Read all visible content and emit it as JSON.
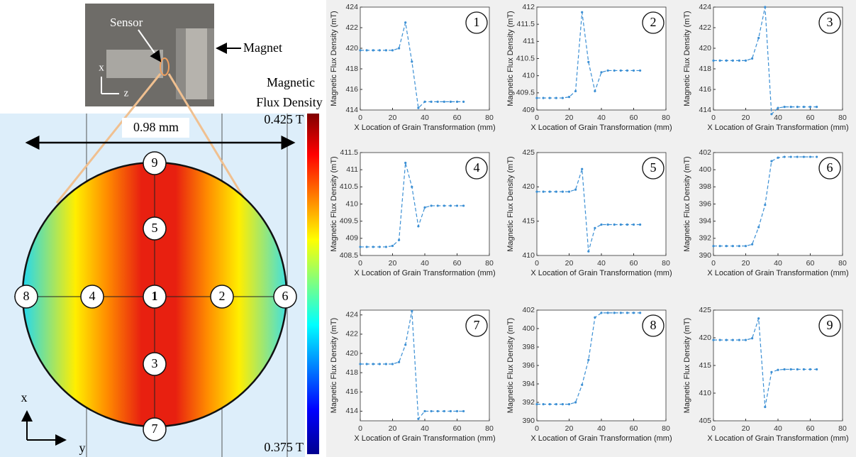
{
  "diagram": {
    "sensor": "Sensor",
    "magnet": "Magnet",
    "photo_x": "x",
    "photo_z": "z",
    "width_label": "0.98 mm",
    "colorbar_title": [
      "Magnetic",
      "Flux Density"
    ],
    "colorbar_max": "0.425 T",
    "colorbar_min": "0.375 T",
    "axis_x": "x",
    "axis_y": "y",
    "points": [
      "9",
      "5",
      "8",
      "4",
      "1",
      "2",
      "6",
      "3",
      "7"
    ]
  },
  "chart_data": [
    {
      "type": "line",
      "annotation": "1",
      "xlabel": "X Location of Grain Transformation (mm)",
      "ylabel": "Magnetic Flux Density (mT)",
      "x": [
        0,
        4,
        8,
        12,
        16,
        20,
        24,
        28,
        32,
        36,
        40,
        44,
        48,
        52,
        56,
        60,
        64
      ],
      "color": "#3b8fd4",
      "values": [
        419.8,
        419.8,
        419.8,
        419.8,
        419.8,
        419.8,
        420.0,
        422.5,
        418.7,
        414.2,
        414.8,
        414.8,
        414.8,
        414.8,
        414.8,
        414.8,
        414.8
      ],
      "xlim": [
        0,
        80
      ],
      "ylim": [
        414,
        424
      ],
      "xticks": [
        0,
        20,
        40,
        60,
        80
      ],
      "yticks": [
        414,
        416,
        418,
        420,
        422,
        424
      ]
    },
    {
      "type": "line",
      "annotation": "2",
      "xlabel": "X Location of Grain Transformation (mm)",
      "ylabel": "Magnetic Flux Density (mT)",
      "x": [
        0,
        4,
        8,
        12,
        16,
        20,
        24,
        28,
        32,
        36,
        40,
        44,
        48,
        52,
        56,
        60,
        64
      ],
      "color": "#3b8fd4",
      "values": [
        409.35,
        409.35,
        409.35,
        409.35,
        409.35,
        409.38,
        409.55,
        411.85,
        410.4,
        409.55,
        410.1,
        410.15,
        410.15,
        410.15,
        410.15,
        410.15,
        410.15
      ],
      "xlim": [
        0,
        80
      ],
      "ylim": [
        409,
        412
      ],
      "xticks": [
        0,
        20,
        40,
        60,
        80
      ],
      "yticks": [
        409,
        409.5,
        410,
        410.5,
        411,
        411.5,
        412
      ]
    },
    {
      "type": "line",
      "annotation": "3",
      "xlabel": "X Location of Grain Transformation (mm)",
      "ylabel": "Magnetic Flux Density (mT)",
      "x": [
        0,
        4,
        8,
        12,
        16,
        20,
        24,
        28,
        32,
        36,
        40,
        44,
        48,
        52,
        56,
        60,
        64
      ],
      "color": "#3b8fd4",
      "values": [
        418.8,
        418.8,
        418.8,
        418.8,
        418.8,
        418.8,
        419.0,
        421.0,
        424.0,
        413.6,
        414.2,
        414.3,
        414.3,
        414.3,
        414.3,
        414.3,
        414.3
      ],
      "xlim": [
        0,
        80
      ],
      "ylim": [
        414,
        424
      ],
      "xticks": [
        0,
        20,
        40,
        60,
        80
      ],
      "yticks": [
        414,
        416,
        418,
        420,
        422,
        424
      ]
    },
    {
      "type": "line",
      "annotation": "4",
      "xlabel": "X Location of Grain Transformation (mm)",
      "ylabel": "Magnetic Flux Density (mT)",
      "x": [
        0,
        4,
        8,
        12,
        16,
        20,
        24,
        28,
        32,
        36,
        40,
        44,
        48,
        52,
        56,
        60,
        64
      ],
      "color": "#3b8fd4",
      "values": [
        408.75,
        408.75,
        408.75,
        408.75,
        408.75,
        408.78,
        408.95,
        411.2,
        410.5,
        409.35,
        409.9,
        409.95,
        409.95,
        409.95,
        409.95,
        409.95,
        409.95
      ],
      "xlim": [
        0,
        80
      ],
      "ylim": [
        408.5,
        411.5
      ],
      "xticks": [
        0,
        20,
        40,
        60,
        80
      ],
      "yticks": [
        408.5,
        409,
        409.5,
        410,
        410.5,
        411,
        411.5
      ]
    },
    {
      "type": "line",
      "annotation": "5",
      "xlabel": "X Location of Grain Transformation (mm)",
      "ylabel": "Magnetic Flux Density (mT)",
      "x": [
        0,
        4,
        8,
        12,
        16,
        20,
        24,
        28,
        32,
        36,
        40,
        44,
        48,
        52,
        56,
        60,
        64
      ],
      "color": "#3b8fd4",
      "values": [
        419.3,
        419.3,
        419.3,
        419.3,
        419.3,
        419.3,
        419.6,
        422.6,
        410.6,
        414.0,
        414.5,
        414.5,
        414.5,
        414.5,
        414.5,
        414.5,
        414.5
      ],
      "xlim": [
        0,
        80
      ],
      "ylim": [
        410,
        425
      ],
      "xticks": [
        0,
        20,
        40,
        60,
        80
      ],
      "yticks": [
        410,
        415,
        420,
        425
      ]
    },
    {
      "type": "line",
      "annotation": "6",
      "xlabel": "X Location of Grain Transformation (mm)",
      "ylabel": "Magnetic Flux Density (mT)",
      "x": [
        0,
        4,
        8,
        12,
        16,
        20,
        24,
        28,
        32,
        36,
        40,
        44,
        48,
        52,
        56,
        60,
        64
      ],
      "color": "#3b8fd4",
      "values": [
        391.1,
        391.1,
        391.1,
        391.1,
        391.1,
        391.1,
        391.3,
        393.3,
        395.9,
        401.0,
        401.4,
        401.5,
        401.5,
        401.5,
        401.5,
        401.5,
        401.5
      ],
      "xlim": [
        0,
        80
      ],
      "ylim": [
        390,
        402
      ],
      "xticks": [
        0,
        20,
        40,
        60,
        80
      ],
      "yticks": [
        390,
        392,
        394,
        396,
        398,
        400,
        402
      ]
    },
    {
      "type": "line",
      "annotation": "7",
      "xlabel": "X Location of Grain Transformation (mm)",
      "ylabel": "Magnetic Flux Density (mT)",
      "x": [
        0,
        4,
        8,
        12,
        16,
        20,
        24,
        28,
        32,
        36,
        40,
        44,
        48,
        52,
        56,
        60,
        64
      ],
      "color": "#3b8fd4",
      "values": [
        418.9,
        418.9,
        418.9,
        418.9,
        418.9,
        418.9,
        419.1,
        420.9,
        424.4,
        413.2,
        414.0,
        414.0,
        414.0,
        414.0,
        414.0,
        414.0,
        414.0
      ],
      "xlim": [
        0,
        80
      ],
      "ylim": [
        413,
        424.5
      ],
      "xticks": [
        0,
        20,
        40,
        60,
        80
      ],
      "yticks": [
        414,
        416,
        418,
        420,
        422,
        424
      ]
    },
    {
      "type": "line",
      "annotation": "8",
      "xlabel": "X Location of Grain Transformation (mm)",
      "ylabel": "Magnetic Flux Density (mT)",
      "x": [
        0,
        4,
        8,
        12,
        16,
        20,
        24,
        28,
        32,
        36,
        40,
        44,
        48,
        52,
        56,
        60,
        64
      ],
      "color": "#3b8fd4",
      "values": [
        391.8,
        391.8,
        391.8,
        391.8,
        391.8,
        391.8,
        392.0,
        393.9,
        396.6,
        401.2,
        401.7,
        401.7,
        401.7,
        401.7,
        401.7,
        401.7,
        401.7
      ],
      "xlim": [
        0,
        80
      ],
      "ylim": [
        390,
        402
      ],
      "xticks": [
        0,
        20,
        40,
        60,
        80
      ],
      "yticks": [
        390,
        392,
        394,
        396,
        398,
        400,
        402
      ]
    },
    {
      "type": "line",
      "annotation": "9",
      "xlabel": "X Location of Grain Transformation (mm)",
      "ylabel": "Magnetic Flux Density (mT)",
      "x": [
        0,
        4,
        8,
        12,
        16,
        20,
        24,
        28,
        32,
        36,
        40,
        44,
        48,
        52,
        56,
        60,
        64
      ],
      "color": "#3b8fd4",
      "values": [
        419.6,
        419.6,
        419.6,
        419.6,
        419.6,
        419.6,
        419.9,
        423.5,
        407.5,
        413.8,
        414.2,
        414.3,
        414.3,
        414.3,
        414.3,
        414.3,
        414.3
      ],
      "xlim": [
        0,
        80
      ],
      "ylim": [
        405,
        425
      ],
      "xticks": [
        0,
        20,
        40,
        60,
        80
      ],
      "yticks": [
        405,
        410,
        415,
        420,
        425
      ]
    }
  ]
}
